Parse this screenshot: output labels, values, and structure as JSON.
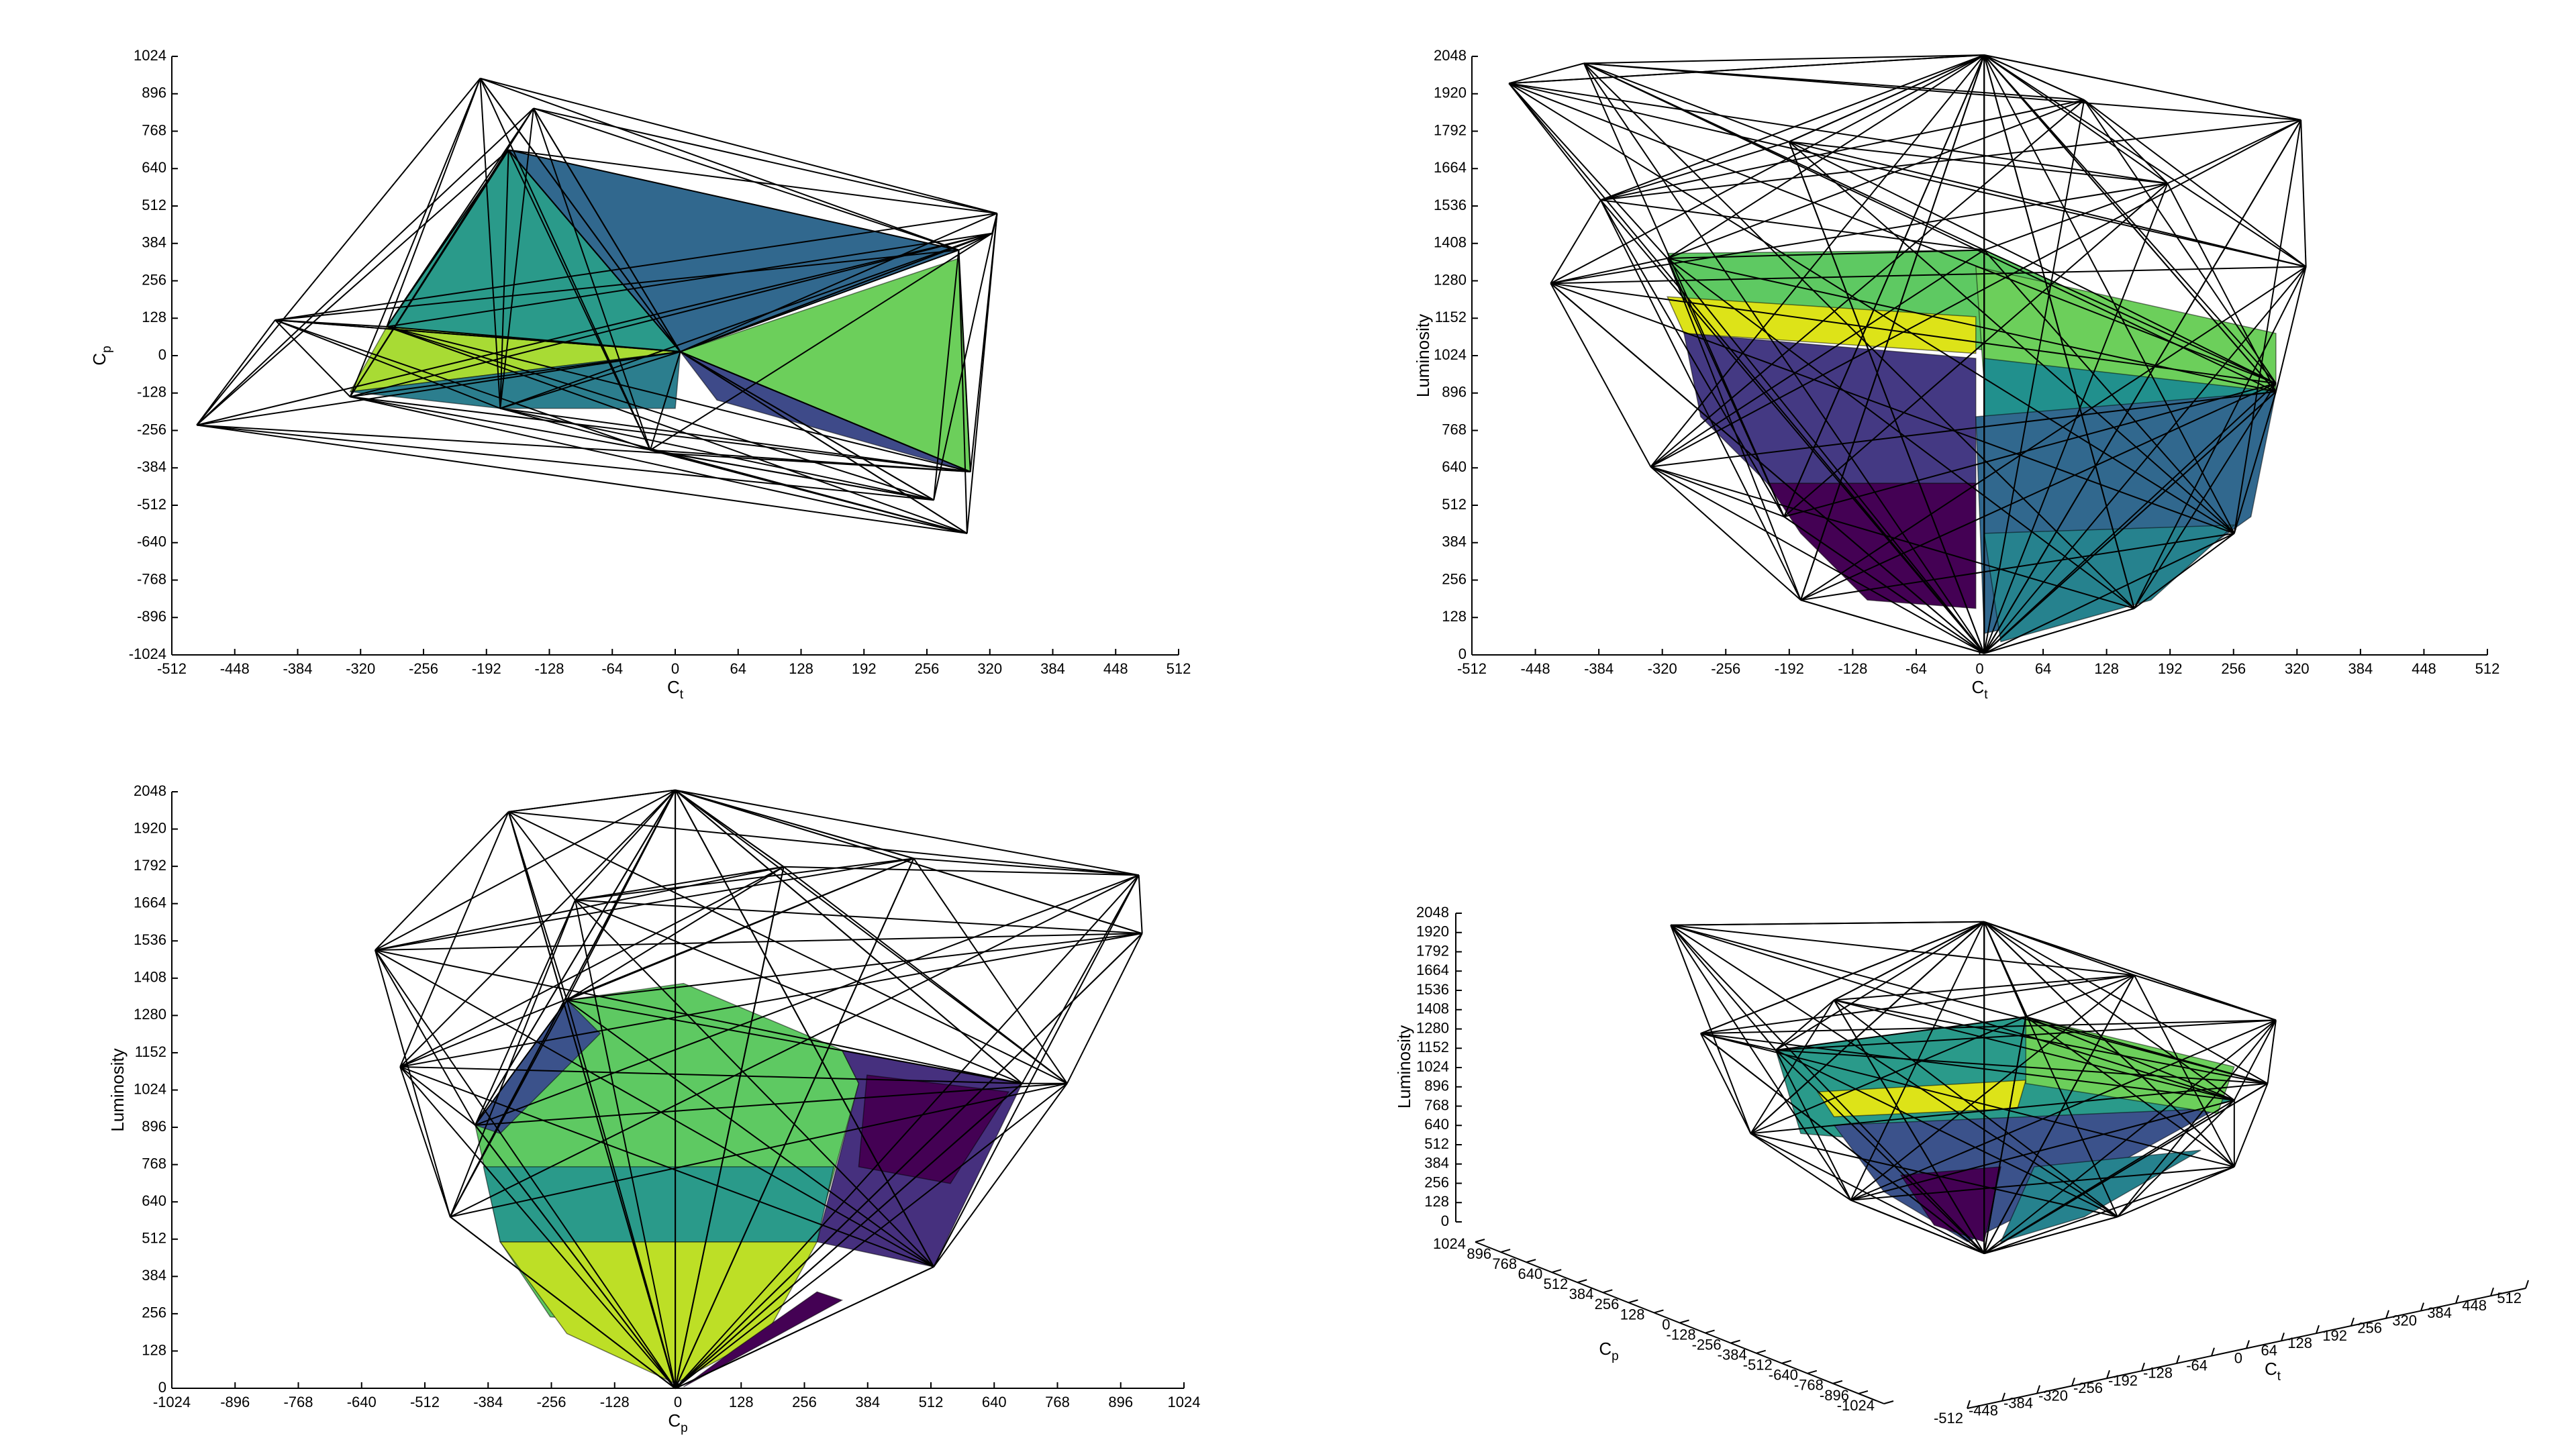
{
  "chart_data": [
    {
      "type": "mesh",
      "xlabel": {
        "text": "C",
        "subscript": "t"
      },
      "ylabel": {
        "text": "C",
        "subscript": "p"
      },
      "xlim": [
        -512,
        512
      ],
      "xticks": [
        -512,
        -448,
        -384,
        -320,
        -256,
        -192,
        -128,
        -64,
        0,
        64,
        128,
        192,
        256,
        320,
        384,
        448,
        512
      ],
      "ylim": [
        -1024,
        1024
      ],
      "yticks": [
        -1024,
        -896,
        -768,
        -640,
        -512,
        -384,
        -256,
        -128,
        0,
        128,
        256,
        384,
        512,
        640,
        768,
        896,
        1024
      ]
    },
    {
      "type": "mesh",
      "xlabel": {
        "text": "C",
        "subscript": "t"
      },
      "ylabel": "Luminosity",
      "xlim": [
        -512,
        512
      ],
      "xticks": [
        -512,
        -448,
        -384,
        -320,
        -256,
        -192,
        -128,
        -64,
        0,
        64,
        128,
        192,
        256,
        320,
        384,
        448,
        512
      ],
      "ylim": [
        0,
        2048
      ],
      "yticks": [
        0,
        128,
        256,
        384,
        512,
        640,
        768,
        896,
        1024,
        1152,
        1280,
        1408,
        1536,
        1664,
        1792,
        1920,
        2048
      ]
    },
    {
      "type": "mesh",
      "xlabel": {
        "text": "C",
        "subscript": "p"
      },
      "ylabel": "Luminosity",
      "xlim": [
        -1024,
        1024
      ],
      "xticks": [
        -1024,
        -896,
        -768,
        -640,
        -512,
        -384,
        -256,
        -128,
        0,
        128,
        256,
        384,
        512,
        640,
        768,
        896,
        1024
      ],
      "ylim": [
        0,
        2048
      ],
      "yticks": [
        0,
        128,
        256,
        384,
        512,
        640,
        768,
        896,
        1024,
        1152,
        1280,
        1408,
        1536,
        1664,
        1792,
        1920,
        2048
      ]
    },
    {
      "type": "mesh3d",
      "xlabel": {
        "text": "C",
        "subscript": "t"
      },
      "ylabel": {
        "text": "C",
        "subscript": "p"
      },
      "zlabel": "Luminosity",
      "xlim": [
        -512,
        512
      ],
      "xticks": [
        -512,
        -448,
        -384,
        -320,
        -256,
        -192,
        -128,
        -64,
        0,
        64,
        128,
        192,
        256,
        320,
        384,
        448,
        512
      ],
      "ylim": [
        -1024,
        1024
      ],
      "yticks": [
        -1024,
        -896,
        -768,
        -640,
        -512,
        -384,
        -256,
        -128,
        0,
        128,
        256,
        384,
        512,
        640,
        768,
        896,
        1024
      ],
      "zlim": [
        0,
        2048
      ],
      "zticks": [
        0,
        128,
        256,
        384,
        512,
        640,
        768,
        896,
        1024,
        1152,
        1280,
        1408,
        1536,
        1664,
        1792,
        1920,
        2048
      ]
    }
  ]
}
